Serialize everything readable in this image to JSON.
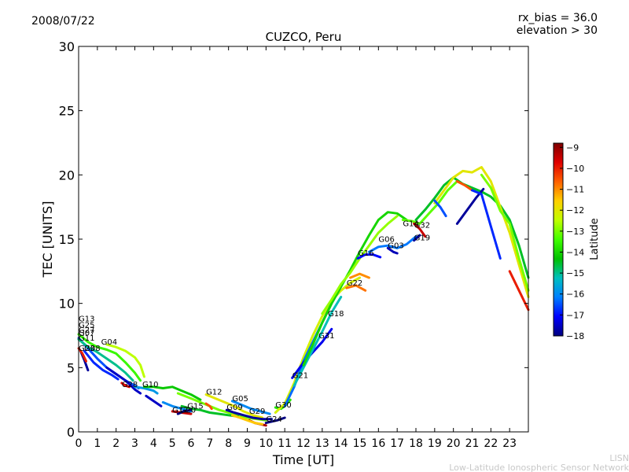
{
  "header": {
    "date": "2008/07/22",
    "rx_bias": "rx_bias = 36.0",
    "elevation": "elevation > 30"
  },
  "credit": {
    "line1": "LISN",
    "line2": "Low-Latitude Ionospheric Sensor Network"
  },
  "colors": {
    "scale": [
      "#00007f",
      "#0000ff",
      "#007fff",
      "#00bfbf",
      "#00c000",
      "#40ff00",
      "#c0ff00",
      "#ffd000",
      "#ff6000",
      "#e00000",
      "#7f0000"
    ]
  },
  "chart_data": {
    "type": "scatter",
    "title": "CUZCO, Peru",
    "xlabel": "Time [UT]",
    "ylabel": "TEC [UNITS]",
    "xlim": [
      0,
      24
    ],
    "ylim": [
      0,
      30
    ],
    "xticks": [
      "0",
      "1",
      "2",
      "3",
      "4",
      "5",
      "6",
      "7",
      "8",
      "9",
      "10",
      "11",
      "12",
      "13",
      "14",
      "15",
      "16",
      "17",
      "18",
      "19",
      "20",
      "21",
      "22",
      "23"
    ],
    "yticks": [
      "0",
      "5",
      "10",
      "15",
      "20",
      "25",
      "30"
    ],
    "colorbar": {
      "label": "Latitude",
      "range": [
        -18,
        -8.8
      ],
      "ticks": [
        "-9",
        "-10",
        "-11",
        "-12",
        "-13",
        "-14",
        "-15",
        "-16",
        "-17",
        "-18"
      ]
    },
    "satellite_labels": [
      {
        "label": "G13",
        "x": 0.0,
        "y": 8.6
      },
      {
        "label": "G25",
        "x": 0.0,
        "y": 8.1
      },
      {
        "label": "G27",
        "x": 0.0,
        "y": 7.7
      },
      {
        "label": "G07",
        "x": 0.0,
        "y": 7.5
      },
      {
        "label": "G11",
        "x": 0.0,
        "y": 7.1
      },
      {
        "label": "G23",
        "x": 0.0,
        "y": 6.3
      },
      {
        "label": "G08",
        "x": 0.3,
        "y": 6.3
      },
      {
        "label": "G04",
        "x": 1.2,
        "y": 6.8
      },
      {
        "label": "G28",
        "x": 2.3,
        "y": 3.5
      },
      {
        "label": "G10",
        "x": 3.4,
        "y": 3.5
      },
      {
        "label": "G17",
        "x": 5.0,
        "y": 1.5
      },
      {
        "label": "G20",
        "x": 5.4,
        "y": 1.5
      },
      {
        "label": "G15",
        "x": 5.8,
        "y": 1.8
      },
      {
        "label": "G12",
        "x": 6.8,
        "y": 2.9
      },
      {
        "label": "G05",
        "x": 8.2,
        "y": 2.4
      },
      {
        "label": "G09",
        "x": 7.9,
        "y": 1.7
      },
      {
        "label": "G29",
        "x": 9.1,
        "y": 1.4
      },
      {
        "label": "G24",
        "x": 10.0,
        "y": 0.8
      },
      {
        "label": "G30",
        "x": 10.5,
        "y": 1.9
      },
      {
        "label": "G21",
        "x": 11.4,
        "y": 4.2
      },
      {
        "label": "G31",
        "x": 12.8,
        "y": 7.3
      },
      {
        "label": "G18",
        "x": 13.3,
        "y": 9.0
      },
      {
        "label": "G22",
        "x": 14.3,
        "y": 11.4
      },
      {
        "label": "G16",
        "x": 14.9,
        "y": 13.7
      },
      {
        "label": "G06",
        "x": 16.0,
        "y": 14.8
      },
      {
        "label": "G03",
        "x": 16.5,
        "y": 14.3
      },
      {
        "label": "G14",
        "x": 17.3,
        "y": 16.0
      },
      {
        "label": "G32",
        "x": 17.9,
        "y": 15.9
      },
      {
        "label": "G19",
        "x": 17.9,
        "y": 14.9
      }
    ],
    "series": [
      {
        "lat": -16.5,
        "x": [
          0.0,
          0.5,
          1.0,
          1.5,
          2.0,
          2.5,
          3.0,
          3.2
        ],
        "y": [
          7.3,
          6.5,
          5.7,
          5.0,
          4.5,
          4.0,
          3.6,
          3.4
        ]
      },
      {
        "lat": -17.8,
        "x": [
          0.1,
          0.3,
          0.5
        ],
        "y": [
          6.3,
          5.6,
          4.8
        ]
      },
      {
        "lat": -13.5,
        "x": [
          0.0,
          0.5,
          1.0,
          1.5,
          2.0,
          2.5,
          3.0,
          3.3
        ],
        "y": [
          7.6,
          7.0,
          6.6,
          6.4,
          6.1,
          5.4,
          4.6,
          4.0
        ]
      },
      {
        "lat": -15.0,
        "x": [
          0.0,
          0.5,
          1.0,
          1.5,
          2.0,
          2.5,
          2.9
        ],
        "y": [
          7.2,
          6.6,
          6.2,
          5.7,
          5.2,
          4.6,
          4.0
        ]
      },
      {
        "lat": -12.5,
        "x": [
          1.5,
          2.0,
          2.5,
          3.0,
          3.3,
          3.5
        ],
        "y": [
          6.8,
          6.6,
          6.3,
          5.8,
          5.2,
          4.3
        ]
      },
      {
        "lat": -10.0,
        "x": [
          0.0,
          0.2,
          0.4
        ],
        "y": [
          6.5,
          6.1,
          5.5
        ]
      },
      {
        "lat": -16.8,
        "x": [
          0.3,
          0.8,
          1.3,
          1.8,
          2.1
        ],
        "y": [
          6.3,
          5.4,
          4.8,
          4.4,
          4.1
        ]
      },
      {
        "lat": -17.5,
        "x": [
          1.5,
          2.0,
          2.5,
          3.0,
          3.3
        ],
        "y": [
          5.0,
          4.5,
          4.0,
          3.3,
          3.0
        ]
      },
      {
        "lat": -9.8,
        "x": [
          2.3,
          2.5,
          2.7
        ],
        "y": [
          3.8,
          3.6,
          3.5
        ]
      },
      {
        "lat": -15.8,
        "x": [
          3.0,
          3.5,
          4.0,
          4.2
        ],
        "y": [
          3.5,
          3.4,
          3.2,
          3.0
        ]
      },
      {
        "lat": -17.5,
        "x": [
          3.6,
          4.0,
          4.4
        ],
        "y": [
          2.8,
          2.4,
          2.0
        ]
      },
      {
        "lat": -14.2,
        "x": [
          3.5,
          4.0,
          4.5,
          5.0,
          5.5,
          6.0,
          6.5
        ],
        "y": [
          3.5,
          3.5,
          3.4,
          3.5,
          3.2,
          2.9,
          2.5
        ]
      },
      {
        "lat": -13.0,
        "x": [
          5.3,
          6.0,
          6.5,
          7.0,
          7.5,
          8.0,
          8.5,
          9.0,
          9.5,
          10.0
        ],
        "y": [
          3.0,
          2.6,
          2.3,
          2.0,
          1.7,
          1.5,
          1.3,
          1.1,
          1.0,
          0.9
        ]
      },
      {
        "lat": -14.5,
        "x": [
          5.5,
          6.0,
          6.5,
          7.0,
          7.5,
          8.0,
          8.5
        ],
        "y": [
          2.0,
          1.8,
          1.7,
          1.5,
          1.4,
          1.3,
          1.2
        ]
      },
      {
        "lat": -16.0,
        "x": [
          4.5,
          5.0,
          5.5,
          6.0
        ],
        "y": [
          2.3,
          2.0,
          1.8,
          1.6
        ]
      },
      {
        "lat": -9.5,
        "x": [
          5.0,
          5.5,
          6.0
        ],
        "y": [
          1.6,
          1.5,
          1.4
        ]
      },
      {
        "lat": -18.0,
        "x": [
          5.3,
          5.6,
          6.0
        ],
        "y": [
          1.4,
          1.6,
          1.7
        ]
      },
      {
        "lat": -12.0,
        "x": [
          6.8,
          7.3,
          7.8,
          8.3,
          8.8,
          9.3,
          9.8
        ],
        "y": [
          2.9,
          2.6,
          2.3,
          2.0,
          1.6,
          1.3,
          1.1
        ]
      },
      {
        "lat": -16.0,
        "x": [
          8.2,
          8.7,
          9.2,
          9.7,
          10.2
        ],
        "y": [
          2.4,
          2.1,
          1.8,
          1.6,
          1.4
        ]
      },
      {
        "lat": -17.8,
        "x": [
          7.9,
          8.3,
          8.8,
          9.3,
          9.8,
          10.3
        ],
        "y": [
          1.7,
          1.5,
          1.3,
          1.1,
          1.0,
          1.0
        ]
      },
      {
        "lat": -9.2,
        "x": [
          9.1,
          9.4,
          9.7,
          10.0
        ],
        "y": [
          0.9,
          0.7,
          0.6,
          0.5
        ]
      },
      {
        "lat": -10.5,
        "x": [
          6.8,
          7.0,
          7.1
        ],
        "y": [
          2.2,
          2.0,
          1.8
        ]
      },
      {
        "lat": -11.5,
        "x": [
          8.2,
          8.6,
          9.0,
          9.4,
          9.8
        ],
        "y": [
          1.3,
          1.1,
          0.9,
          0.7,
          0.6
        ]
      },
      {
        "lat": -18.0,
        "x": [
          10.0,
          10.3,
          10.6,
          11.0
        ],
        "y": [
          0.7,
          0.8,
          0.9,
          1.1
        ]
      },
      {
        "lat": -13.8,
        "x": [
          10.5,
          10.8,
          11.0,
          11.3
        ],
        "y": [
          1.9,
          1.8,
          2.0,
          2.5
        ]
      },
      {
        "lat": -12.2,
        "x": [
          10.5,
          11.0,
          11.5,
          12.0,
          12.5,
          13.0,
          13.5,
          14.0,
          14.5,
          15.0
        ],
        "y": [
          1.5,
          2.2,
          3.8,
          5.8,
          7.5,
          9.0,
          10.2,
          11.0,
          11.6,
          12.0
        ]
      },
      {
        "lat": -16.3,
        "x": [
          11.0,
          11.5,
          12.0,
          12.5,
          13.0,
          13.5,
          14.0
        ],
        "y": [
          2.0,
          3.5,
          5.5,
          7.0,
          8.5,
          10.0,
          11.3
        ]
      },
      {
        "lat": -17.2,
        "x": [
          11.4,
          12.0,
          12.5,
          13.0,
          13.5
        ],
        "y": [
          4.2,
          5.4,
          6.2,
          7.0,
          8.0
        ]
      },
      {
        "lat": -15.2,
        "x": [
          11.5,
          12.0,
          12.5,
          13.0,
          13.5,
          14.0
        ],
        "y": [
          3.6,
          5.0,
          6.4,
          7.8,
          9.3,
          10.5
        ]
      },
      {
        "lat": -14.0,
        "x": [
          12.0,
          12.5,
          13.0,
          13.5,
          14.0,
          14.5,
          15.0,
          15.5,
          16.0,
          16.5,
          17.0,
          17.5
        ],
        "y": [
          5.2,
          6.8,
          8.5,
          10.0,
          11.3,
          12.6,
          14.0,
          15.3,
          16.5,
          17.1,
          17.0,
          16.5
        ]
      },
      {
        "lat": -12.8,
        "x": [
          13.0,
          13.5,
          14.0,
          14.5,
          15.0,
          15.5,
          16.0,
          16.5,
          17.0
        ],
        "y": [
          9.2,
          10.3,
          11.5,
          12.4,
          13.5,
          14.5,
          15.5,
          16.2,
          16.8
        ]
      },
      {
        "lat": -10.8,
        "x": [
          14.3,
          14.8,
          15.3
        ],
        "y": [
          11.2,
          11.4,
          11.0
        ]
      },
      {
        "lat": -11.0,
        "x": [
          14.5,
          15.0,
          15.5
        ],
        "y": [
          12.0,
          12.3,
          12.0
        ]
      },
      {
        "lat": -17.0,
        "x": [
          14.9,
          15.3,
          15.7,
          16.1
        ],
        "y": [
          13.5,
          13.8,
          13.8,
          13.6
        ]
      },
      {
        "lat": -16.2,
        "x": [
          15.5,
          16.0,
          16.5,
          17.0,
          17.5,
          18.0
        ],
        "y": [
          14.0,
          14.4,
          14.5,
          14.3,
          14.6,
          15.2
        ]
      },
      {
        "lat": -17.6,
        "x": [
          16.5,
          16.8,
          17.0
        ],
        "y": [
          14.3,
          14.0,
          13.9
        ]
      },
      {
        "lat": -13.2,
        "x": [
          17.3,
          17.8,
          18.2,
          18.7,
          19.2,
          19.7,
          20.2
        ],
        "y": [
          16.5,
          16.4,
          16.2,
          17.0,
          17.8,
          18.8,
          19.5
        ]
      },
      {
        "lat": -9.5,
        "x": [
          17.9,
          18.2,
          18.5
        ],
        "y": [
          16.2,
          15.8,
          15.2
        ]
      },
      {
        "lat": -17.8,
        "x": [
          17.9,
          18.2
        ],
        "y": [
          14.9,
          15.3
        ]
      },
      {
        "lat": -14.5,
        "x": [
          18.0,
          18.5,
          19.0,
          19.5,
          20.0,
          20.5,
          21.0,
          21.5,
          22.0,
          22.5,
          23.0,
          23.5,
          24.0
        ],
        "y": [
          16.5,
          17.3,
          18.2,
          19.2,
          19.8,
          19.3,
          19.0,
          18.7,
          18.3,
          17.6,
          16.5,
          14.5,
          12.0
        ]
      },
      {
        "lat": -12.0,
        "x": [
          19.0,
          19.5,
          20.0,
          20.5,
          21.0,
          21.5,
          22.0,
          22.5,
          23.0,
          23.5,
          24.0
        ],
        "y": [
          17.8,
          18.8,
          19.8,
          20.3,
          20.2,
          20.6,
          19.5,
          17.5,
          15.5,
          13.0,
          10.5
        ]
      },
      {
        "lat": -16.5,
        "x": [
          19.0,
          19.3,
          19.6
        ],
        "y": [
          18.0,
          17.5,
          16.8
        ]
      },
      {
        "lat": -17.8,
        "x": [
          20.2,
          20.7,
          21.2,
          21.6
        ],
        "y": [
          16.2,
          17.2,
          18.2,
          18.9
        ]
      },
      {
        "lat": -10.5,
        "x": [
          20.2,
          20.6,
          21.0
        ],
        "y": [
          19.5,
          19.2,
          18.8
        ]
      },
      {
        "lat": -16.8,
        "x": [
          21.0,
          21.5,
          22.0,
          22.5
        ],
        "y": [
          18.8,
          18.5,
          16.0,
          13.5
        ]
      },
      {
        "lat": -10.0,
        "x": [
          23.0,
          23.5,
          24.0
        ],
        "y": [
          12.5,
          11.0,
          9.5
        ]
      },
      {
        "lat": -13.0,
        "x": [
          21.5,
          22.0,
          22.5,
          23.0,
          23.5,
          24.0
        ],
        "y": [
          20.0,
          19.0,
          17.2,
          16.2,
          13.5,
          11.0
        ]
      }
    ]
  }
}
